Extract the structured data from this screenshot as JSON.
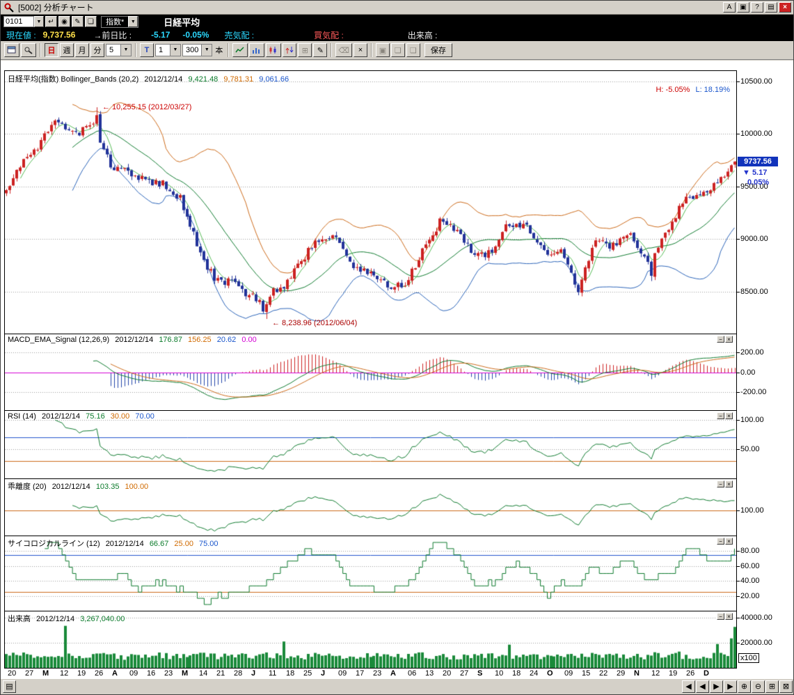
{
  "titlebar": {
    "title": "[5002]  分析チャート",
    "btn_a": "A",
    "btn_copy": "▣",
    "btn_help": "?",
    "btn_min": "▤",
    "btn_close": "×"
  },
  "toolbar1": {
    "code": "0101",
    "category": "指数*",
    "instrument": "日経平均"
  },
  "quote": {
    "current_label": "現在値 :",
    "current_value": "9,737.56",
    "prevdiff_label": "→前日比 :",
    "prevdiff_value": "-5.17",
    "prevdiff_pct": "-0.05%",
    "ask_label": "売気配 :",
    "bid_label": "買気配 :",
    "volume_label": "出来高 :"
  },
  "toolbar3": {
    "day": "日",
    "week": "週",
    "month": "月",
    "minute": "分",
    "minute_value": "5",
    "tick": "T",
    "tick_value": "1",
    "bars_value": "300",
    "bars_unit": "本",
    "save": "保存"
  },
  "icons": {
    "undo": "↵",
    "view": "◉",
    "edit": "✎",
    "copy": "❏",
    "dropdown": "▼",
    "grid": "⊞",
    "pencil": "✎",
    "eraser": "⌫",
    "delete": "×",
    "clipboard": "▣",
    "page": "❏",
    "panel_min": "−",
    "panel_close": "×",
    "nav_first": "◀",
    "nav_prev": "◀",
    "nav_next": "▶",
    "nav_last": "▶",
    "zoom_in": "⊕",
    "zoom_out": "⊖",
    "grid_small": "⊞",
    "close_small": "⊠",
    "grip": "▤"
  },
  "panels": {
    "main": {
      "title": "日経平均(指数) Bollinger_Bands (20,2)",
      "date": "2012/12/14",
      "mid": "9,421.48",
      "upper": "9,781.31",
      "lower": "9,061.66",
      "high_label": "H: -5.05%",
      "low_label": "L: 18.19%",
      "axis": [
        {
          "v": 10500,
          "t": "10500.00"
        },
        {
          "v": 10000,
          "t": "10000.00"
        },
        {
          "v": 9500,
          "t": "9500.00"
        },
        {
          "v": 9000,
          "t": "9000.00"
        },
        {
          "v": 8500,
          "t": "8500.00"
        }
      ],
      "marker": {
        "price": "9737.56",
        "change": "▼ 5.17",
        "pct": "0.05%",
        "value": 9737.56
      },
      "annotations": [
        {
          "text": "← 10,255.15 (2012/03/27)",
          "index": 26,
          "value": 10255.15
        },
        {
          "text": "← 8,238.96 (2012/06/04)",
          "index": 75,
          "value": 8238.96
        }
      ]
    },
    "macd": {
      "title": "MACD_EMA_Signal (12,26,9)",
      "date": "2012/12/14",
      "v1": "176.87",
      "v2": "156.25",
      "v3": "20.62",
      "v4": "0.00",
      "axis": [
        {
          "v": 200,
          "t": "200.00"
        },
        {
          "v": 0,
          "t": "0.00"
        },
        {
          "v": -200,
          "t": "-200.00"
        }
      ]
    },
    "rsi": {
      "title": "RSI (14)",
      "date": "2012/12/14",
      "v1": "75.16",
      "v2": "30.00",
      "v3": "70.00",
      "axis": [
        {
          "v": 100,
          "t": "100.00"
        },
        {
          "v": 50,
          "t": "50.00"
        }
      ]
    },
    "kairi": {
      "title": "乖離度 (20)",
      "date": "2012/12/14",
      "v1": "103.35",
      "v2": "100.00",
      "axis": [
        {
          "v": 100,
          "t": "100.00"
        }
      ]
    },
    "psych": {
      "title": "サイコロジカルライン (12)",
      "date": "2012/12/14",
      "v1": "66.67",
      "v2": "25.00",
      "v3": "75.00",
      "axis": [
        {
          "v": 80,
          "t": "80.00"
        },
        {
          "v": 60,
          "t": "60.00"
        },
        {
          "v": 40,
          "t": "40.00"
        },
        {
          "v": 20,
          "t": "20.00"
        }
      ]
    },
    "volume": {
      "title": "出来高",
      "date": "2012/12/14",
      "v1": "3,267,040.00",
      "unit": "x100",
      "axis": [
        {
          "v": 40000,
          "t": "40000.00"
        },
        {
          "v": 20000,
          "t": "20000.00"
        }
      ]
    }
  },
  "chart": {
    "type": "candlestick+indicators",
    "bars": 211,
    "weekly_closes": [
      9485,
      9723,
      9930,
      10130,
      10011,
      10083,
      9688,
      9638,
      9561,
      9520,
      9380,
      8953,
      8611,
      8580,
      8440,
      8459,
      8569,
      8798,
      9007,
      9020,
      8724,
      8669,
      8566,
      8555,
      8891,
      9162,
      9070,
      8839,
      8871,
      9159,
      9110,
      8870,
      8863,
      8534,
      9002,
      8933,
      9051,
      8757,
      9024,
      9367,
      9446,
      9527,
      9737.56
    ],
    "last_close": 9737.56,
    "overrides": {
      "close": {
        "26": 10180,
        "73": 8420,
        "74": 8310,
        "75": 8380,
        "186": 8650
      },
      "high": {
        "26": 10255.15
      },
      "low": {
        "75": 8238.96,
        "186": 8600
      }
    },
    "volume_overrides": {
      "17": 33500,
      "80": 21000,
      "145": 18500,
      "205": 19000,
      "209": 23500,
      "210": 32670.4
    },
    "scales": {
      "main": {
        "min": 8100,
        "max": 10600,
        "grid": [
          8500,
          9000,
          9500,
          10000,
          10500
        ]
      },
      "macd": {
        "min": -380,
        "max": 380,
        "grid": [
          -200,
          200
        ],
        "zero": 0
      },
      "rsi": {
        "min": 0,
        "max": 115,
        "grid": [
          50,
          100
        ],
        "line30": 30,
        "line70": 70
      },
      "kairi": {
        "min": 92,
        "max": 110,
        "line100": 100
      },
      "psych": {
        "min": 0,
        "max": 100,
        "grid": [
          20,
          40,
          60,
          80
        ],
        "line25": 25,
        "line75": 75
      },
      "volume": {
        "min": 0,
        "max": 45000,
        "grid": [
          20000,
          40000
        ]
      }
    },
    "x_labels": [
      "20",
      "27",
      "M",
      "12",
      "19",
      "26",
      "A",
      "09",
      "16",
      "23",
      "M",
      "14",
      "21",
      "28",
      "J",
      "11",
      "18",
      "25",
      "J",
      "09",
      "17",
      "23",
      "A",
      "06",
      "13",
      "20",
      "27",
      "S",
      "10",
      "18",
      "24",
      "O",
      "09",
      "15",
      "22",
      "29",
      "N",
      "12",
      "19",
      "26",
      "D"
    ],
    "colors": {
      "up": "#cc2222",
      "down": "#223399",
      "sma5": "#55bb55",
      "sma20": "#0e7a2e",
      "bb_up": "#cc6a1a",
      "bb_lo": "#2a63b8",
      "macd": "#0e7a2e",
      "signal": "#cc6a1a",
      "hist_pos": "#cc2222",
      "hist_neg": "#2244aa",
      "zero": "#d400d4",
      "rsi": "#0e7a2e",
      "line30": "#cc6a1a",
      "line70": "#2255cc",
      "kairi": "#0e7a2e",
      "line100": "#cc6a1a",
      "psych": "#0e7a2e",
      "line25": "#cc6a1a",
      "line75": "#2255cc",
      "vol": "#1a8a3a",
      "grid": "#9a9a9a"
    }
  }
}
